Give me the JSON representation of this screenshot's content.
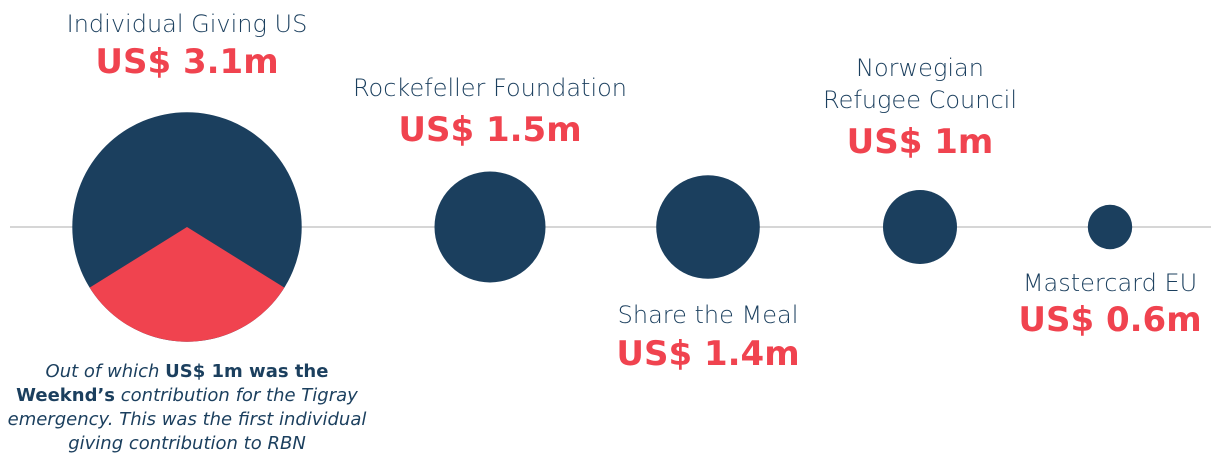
{
  "chart_data": {
    "type": "bubble",
    "categories": [
      "Individual Giving US",
      "Rockefeller Foundation",
      "Share the Meal",
      "Norwegian Refugee Council",
      "Mastercard EU"
    ],
    "values": [
      3.1,
      1.5,
      1.4,
      1,
      0.6
    ],
    "value_labels": [
      "US$ 3.1m",
      "US$ 1.5m",
      "US$ 1.4m",
      "US$ 1m",
      "US$ 0.6m"
    ],
    "color": "#1b3f5e",
    "label_color": "#f0434f",
    "highlight": {
      "value": 1,
      "color": "#f0434f"
    },
    "annotation": [
      {
        "text": "Out of which ",
        "style": "italic"
      },
      {
        "text": "US$ 1m was the Weeknd’s",
        "style": "bold"
      },
      {
        "text": " contribution for the Tigray emergency. This was the first individual giving contribution to RBN",
        "style": "italic"
      }
    ]
  }
}
